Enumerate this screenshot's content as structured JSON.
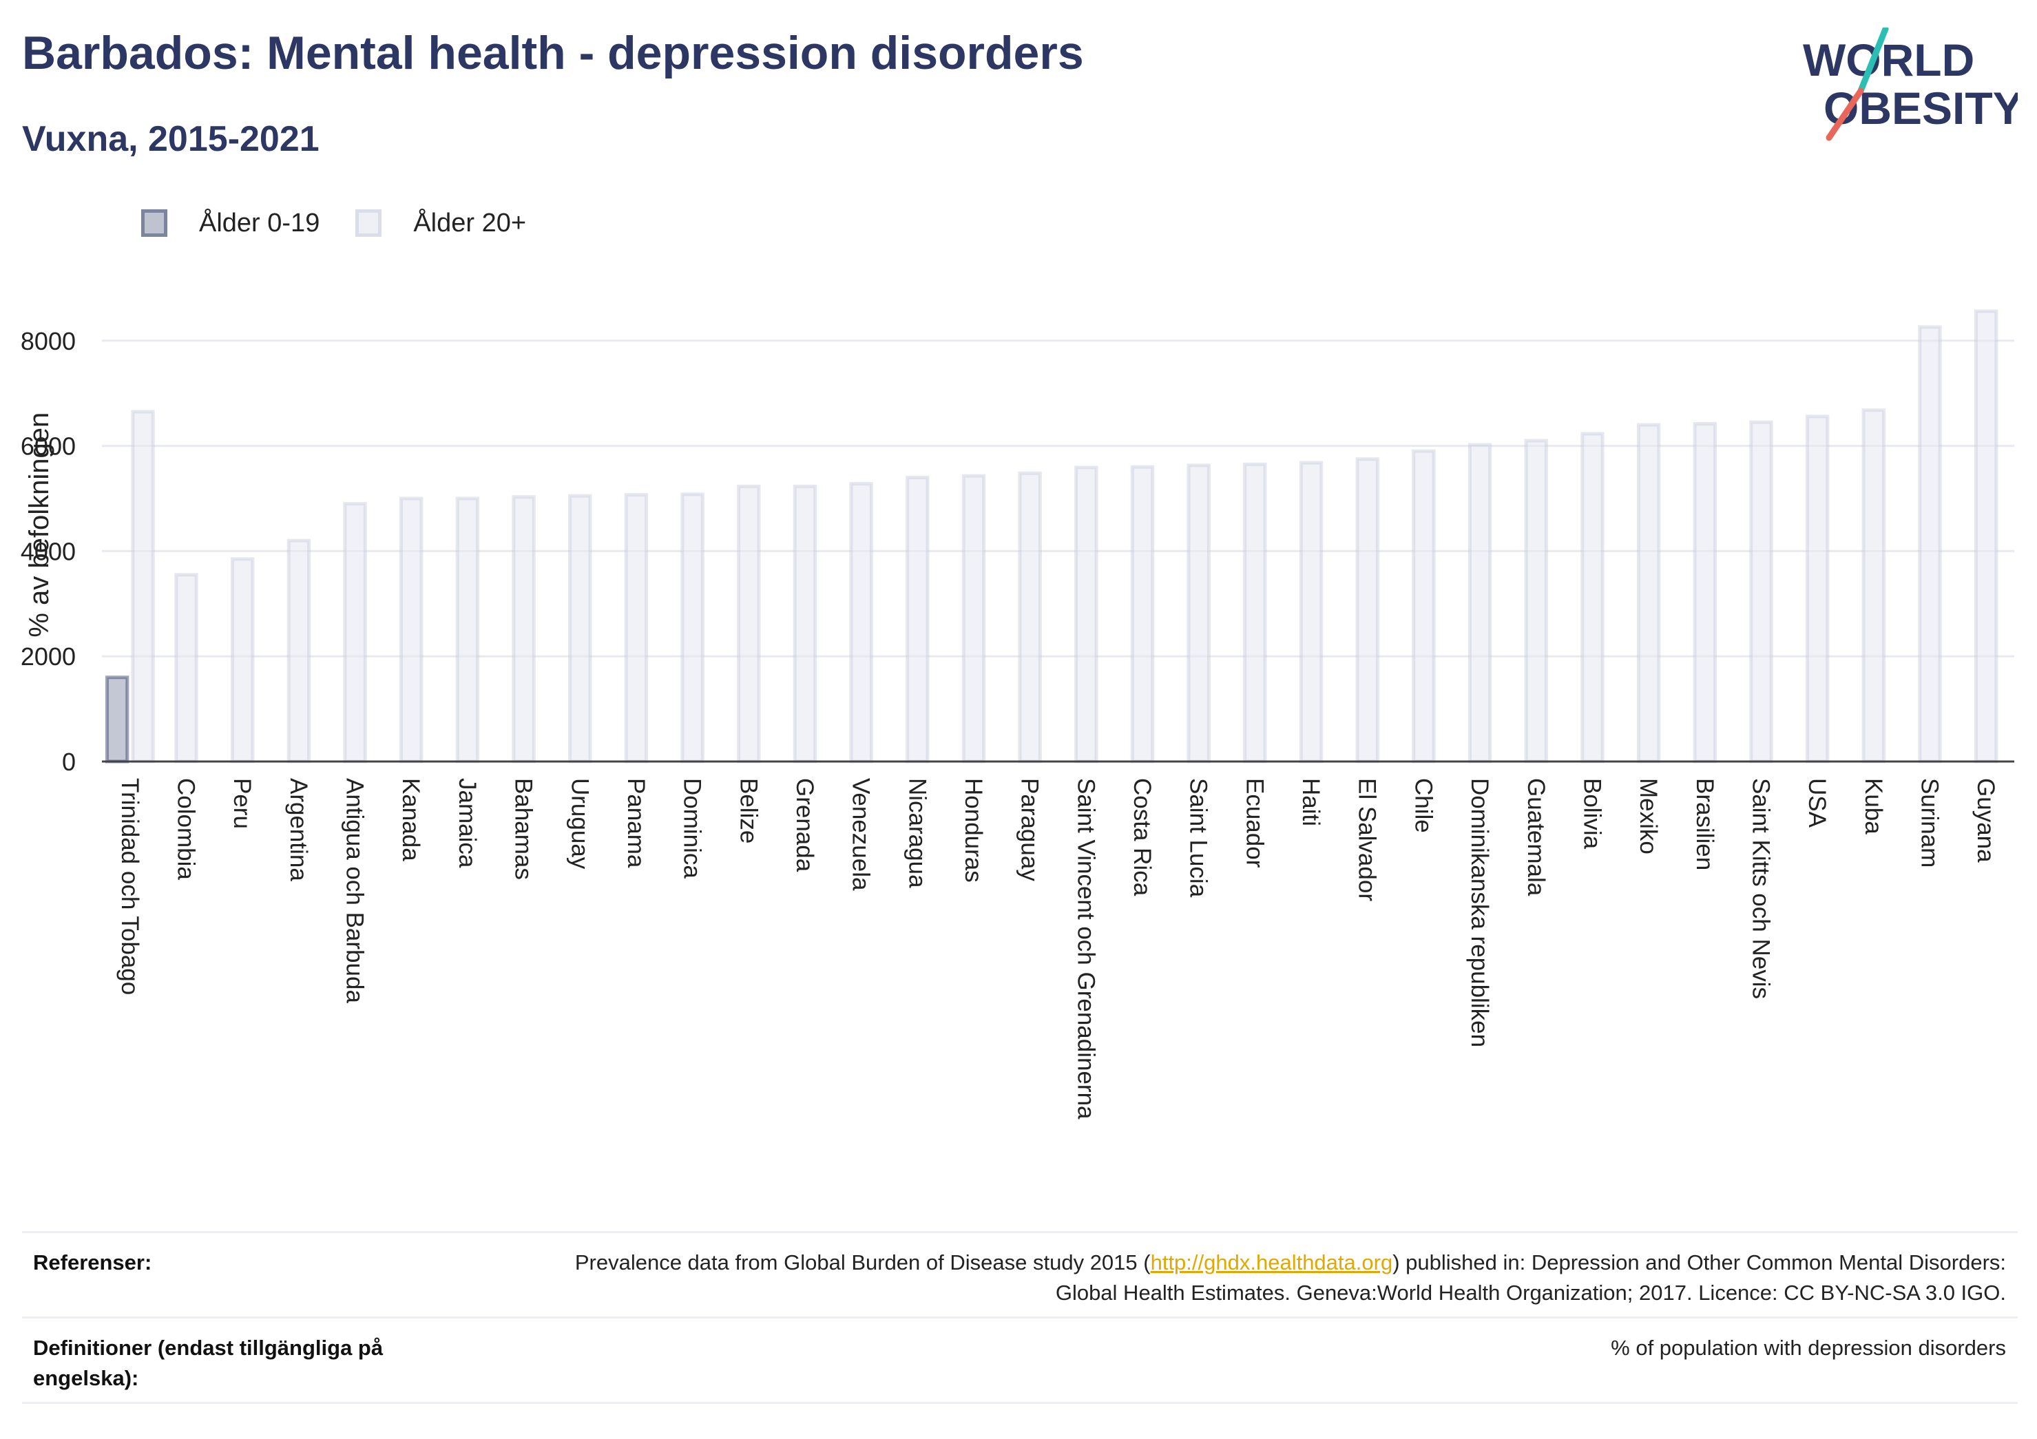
{
  "header": {
    "title": "Barbados: Mental health - depression disorders",
    "subtitle": "Vuxna, 2015-2021"
  },
  "logo": {
    "line1": "WORLD",
    "line2": "OBESITY"
  },
  "colors": {
    "title": "#2c3764",
    "series_young": "#2c3764",
    "series_adult": "#c8ccdc",
    "accent_teal": "#2bbfb4",
    "accent_coral": "#e8675a",
    "link": "#e0a800"
  },
  "chart_data": {
    "type": "bar",
    "ylabel": "% av befolkningen",
    "xlabel": "",
    "ylim": [
      0,
      8800
    ],
    "yticks": [
      0,
      2000,
      4000,
      6000,
      8000
    ],
    "grid": true,
    "legend_position": "top-left",
    "categories": [
      "Trinidad och Tobago",
      "Colombia",
      "Peru",
      "Argentina",
      "Antigua och Barbuda",
      "Kanada",
      "Jamaica",
      "Bahamas",
      "Uruguay",
      "Panama",
      "Dominica",
      "Belize",
      "Grenada",
      "Venezuela",
      "Nicaragua",
      "Honduras",
      "Paraguay",
      "Saint Vincent och Grenadinerna",
      "Costa Rica",
      "Saint Lucia",
      "Ecuador",
      "Haiti",
      "El Salvador",
      "Chile",
      "Dominikanska republiken",
      "Guatemala",
      "Bolivia",
      "Mexiko",
      "Brasilien",
      "Saint Kitts och Nevis",
      "USA",
      "Kuba",
      "Surinam",
      "Guyana"
    ],
    "series": [
      {
        "name": "Ålder 0-19",
        "values": [
          1600,
          null,
          null,
          null,
          null,
          null,
          null,
          null,
          null,
          null,
          null,
          null,
          null,
          null,
          null,
          null,
          null,
          null,
          null,
          null,
          null,
          null,
          null,
          null,
          null,
          null,
          null,
          null,
          null,
          null,
          null,
          null,
          null,
          null
        ]
      },
      {
        "name": "Ålder 20+",
        "values": [
          6650,
          3550,
          3850,
          4200,
          4900,
          5000,
          5000,
          5030,
          5050,
          5070,
          5080,
          5230,
          5230,
          5280,
          5400,
          5430,
          5480,
          5590,
          5600,
          5630,
          5650,
          5680,
          5750,
          5900,
          6020,
          6100,
          6230,
          6400,
          6420,
          6450,
          6560,
          6680,
          8260,
          8560
        ]
      }
    ]
  },
  "footer": {
    "references_label": "Referenser:",
    "references_text_before": "Prevalence data from Global Burden of Disease study 2015 (",
    "references_link": "http://ghdx.healthdata.org",
    "references_text_after": ") published in: Depression and Other Common Mental Disorders: Global Health Estimates. Geneva:World Health Organization; 2017. Licence: CC BY-NC-SA 3.0 IGO.",
    "definitions_label": "Definitioner (endast tillgängliga på engelska):",
    "definitions_text": "% of population with depression disorders"
  }
}
